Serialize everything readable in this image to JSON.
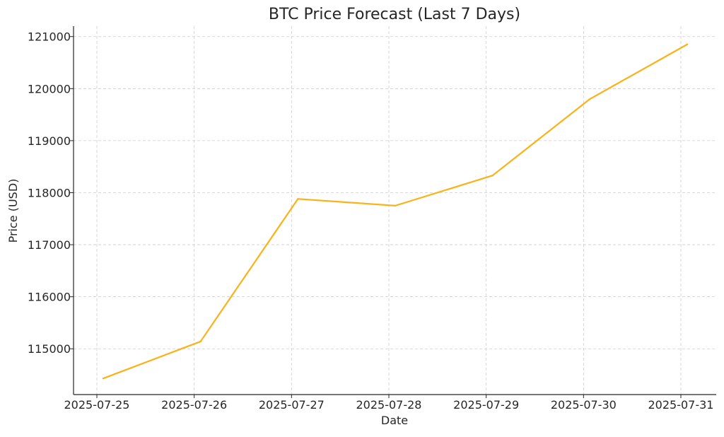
{
  "chart_data": {
    "type": "line",
    "title": "BTC Price Forecast (Last 7 Days)",
    "xlabel": "Date",
    "ylabel": "Price (USD)",
    "x": [
      "2025-07-25",
      "2025-07-26",
      "2025-07-27",
      "2025-07-28",
      "2025-07-29",
      "2025-07-30",
      "2025-07-31"
    ],
    "series": [
      {
        "values": [
          114430,
          115140,
          117880,
          117750,
          118330,
          119800,
          120850
        ],
        "color": "#FBB117"
      }
    ],
    "yticks": [
      "115000",
      "116000",
      "117000",
      "118000",
      "119000",
      "120000",
      "121000"
    ],
    "ylim": [
      114120,
      121200
    ],
    "grid": true,
    "legend": "none"
  }
}
